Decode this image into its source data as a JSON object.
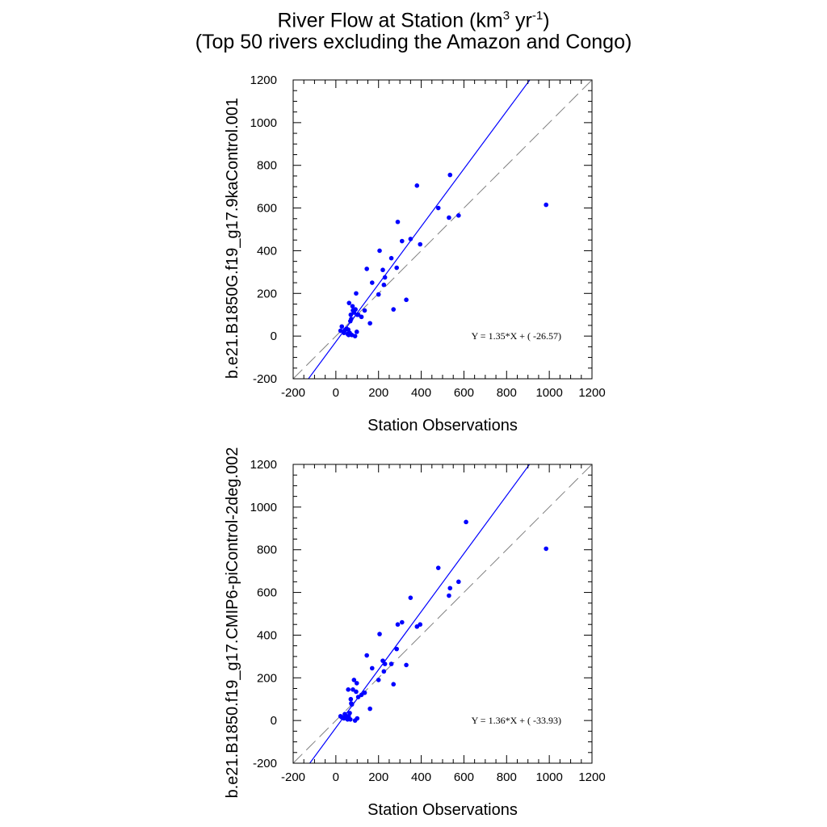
{
  "page": {
    "title_line1_main": "River Flow at Station (km",
    "title_line1_sup1": "3",
    "title_line1_mid": " yr",
    "title_line1_sup2": "-1",
    "title_line1_end": ")",
    "title_line2": "(Top 50 rivers excluding the Amazon and Congo)"
  },
  "colors": {
    "points": "#0000ff",
    "fit_line": "#0000ff",
    "one_to_one": "#808080",
    "axes": "#000000"
  },
  "chart_data": [
    {
      "type": "scatter",
      "xlabel": "Station Observations",
      "ylabel": "b.e21.B1850G.f19_g17.9kaControl.001",
      "xlim": [
        -200,
        1200
      ],
      "ylim": [
        -200,
        1200
      ],
      "ticks": [
        -200,
        0,
        200,
        400,
        600,
        800,
        1000,
        1200
      ],
      "tick_labels": [
        "-200",
        "0",
        "200",
        "400",
        "600",
        "800",
        "1000",
        "1200"
      ],
      "fit": {
        "slope": 1.35,
        "intercept": -26.57,
        "label": "Y =  1.35*X + (  -26.57)"
      },
      "one_to_one_line": true,
      "points": [
        [
          22,
          25
        ],
        [
          28,
          45
        ],
        [
          38,
          15
        ],
        [
          42,
          28
        ],
        [
          50,
          35
        ],
        [
          55,
          10
        ],
        [
          58,
          30
        ],
        [
          60,
          5
        ],
        [
          62,
          155
        ],
        [
          65,
          15
        ],
        [
          68,
          70
        ],
        [
          70,
          100
        ],
        [
          72,
          80
        ],
        [
          75,
          5
        ],
        [
          78,
          140
        ],
        [
          80,
          120
        ],
        [
          85,
          110
        ],
        [
          90,
          0
        ],
        [
          92,
          125
        ],
        [
          95,
          200
        ],
        [
          98,
          20
        ],
        [
          100,
          100
        ],
        [
          105,
          100
        ],
        [
          120,
          90
        ],
        [
          135,
          120
        ],
        [
          145,
          315
        ],
        [
          160,
          60
        ],
        [
          170,
          250
        ],
        [
          200,
          195
        ],
        [
          205,
          400
        ],
        [
          220,
          310
        ],
        [
          225,
          240
        ],
        [
          230,
          275
        ],
        [
          260,
          365
        ],
        [
          270,
          125
        ],
        [
          285,
          320
        ],
        [
          290,
          535
        ],
        [
          310,
          445
        ],
        [
          330,
          170
        ],
        [
          350,
          455
        ],
        [
          380,
          705
        ],
        [
          395,
          430
        ],
        [
          480,
          600
        ],
        [
          530,
          555
        ],
        [
          535,
          755
        ],
        [
          575,
          565
        ],
        [
          985,
          615
        ]
      ]
    },
    {
      "type": "scatter",
      "xlabel": "Station Observations",
      "ylabel": "b.e21.B1850.f19_g17.CMIP6-piControl-2deg.002",
      "xlim": [
        -200,
        1200
      ],
      "ylim": [
        -200,
        1200
      ],
      "ticks": [
        -200,
        0,
        200,
        400,
        600,
        800,
        1000,
        1200
      ],
      "tick_labels": [
        "-200",
        "0",
        "200",
        "400",
        "600",
        "800",
        "1000",
        "1200"
      ],
      "fit": {
        "slope": 1.36,
        "intercept": -33.93,
        "label": "Y =  1.36*X + (  -33.93)"
      },
      "one_to_one_line": true,
      "points": [
        [
          22,
          20
        ],
        [
          28,
          15
        ],
        [
          38,
          10
        ],
        [
          42,
          30
        ],
        [
          50,
          20
        ],
        [
          55,
          5
        ],
        [
          58,
          145
        ],
        [
          60,
          20
        ],
        [
          65,
          35
        ],
        [
          68,
          5
        ],
        [
          70,
          100
        ],
        [
          72,
          80
        ],
        [
          75,
          75
        ],
        [
          80,
          145
        ],
        [
          85,
          190
        ],
        [
          90,
          0
        ],
        [
          95,
          135
        ],
        [
          98,
          175
        ],
        [
          100,
          10
        ],
        [
          105,
          110
        ],
        [
          120,
          120
        ],
        [
          135,
          130
        ],
        [
          145,
          305
        ],
        [
          160,
          55
        ],
        [
          170,
          245
        ],
        [
          200,
          190
        ],
        [
          205,
          405
        ],
        [
          220,
          280
        ],
        [
          225,
          230
        ],
        [
          230,
          265
        ],
        [
          260,
          265
        ],
        [
          270,
          170
        ],
        [
          285,
          335
        ],
        [
          290,
          450
        ],
        [
          310,
          460
        ],
        [
          330,
          260
        ],
        [
          350,
          575
        ],
        [
          380,
          440
        ],
        [
          395,
          450
        ],
        [
          480,
          715
        ],
        [
          530,
          585
        ],
        [
          535,
          620
        ],
        [
          575,
          650
        ],
        [
          610,
          930
        ],
        [
          985,
          805
        ]
      ]
    }
  ]
}
